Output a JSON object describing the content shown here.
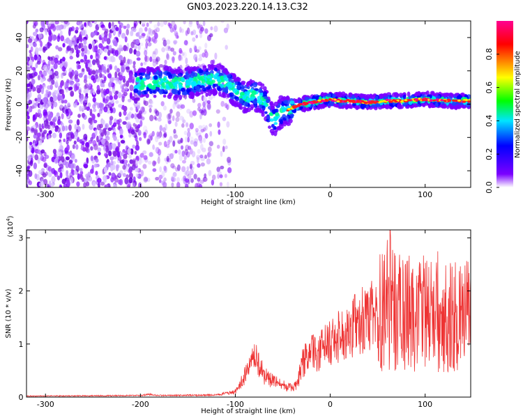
{
  "title": "GN03.2023.220.14.13.C32",
  "chart_data": [
    {
      "type": "heatmap",
      "xlabel": "Height of straight line (km)",
      "ylabel": "Frequency (Hz)",
      "xlim": [
        -320,
        148
      ],
      "ylim": [
        -50,
        50
      ],
      "x_ticks": [
        -300,
        -200,
        -100,
        0,
        100
      ],
      "y_ticks": [
        -40,
        -20,
        0,
        20,
        40
      ],
      "grid": false,
      "colorbar": {
        "label": "Normalized spectral amplitude",
        "range": [
          0,
          1
        ],
        "ticks": [
          0.0,
          0.2,
          0.4,
          0.6,
          0.8
        ],
        "colormap": [
          "#ffffff",
          "#7b00ff",
          "#0000ff",
          "#00e5ff",
          "#00ff00",
          "#ffff00",
          "#ff0000",
          "#ff0090"
        ]
      },
      "ridge": {
        "x": [
          -200,
          -180,
          -160,
          -140,
          -120,
          -110,
          -100,
          -90,
          -80,
          -70,
          -60,
          -50,
          -45,
          -40,
          -30,
          -20,
          -10,
          0,
          10,
          20,
          40,
          60,
          80,
          100,
          120,
          140,
          148
        ],
        "y": [
          12,
          13,
          12,
          14,
          15,
          13,
          8,
          4,
          6,
          2,
          -10,
          -4,
          -4,
          -2,
          0,
          1,
          2,
          3,
          2,
          2,
          1,
          2,
          2,
          3,
          2,
          2,
          2
        ]
      },
      "noise_region": {
        "x": [
          -320,
          -110
        ],
        "y": [
          -50,
          50
        ]
      }
    },
    {
      "type": "line",
      "xlabel": "Height of straight line (km)",
      "ylabel": "SNR (10 * v/v)",
      "yscale_label": "(x10",
      "yscale_exp": "4",
      "yscale_close": ")",
      "xlim": [
        -320,
        148
      ],
      "ylim": [
        0,
        3.15
      ],
      "x_ticks": [
        -300,
        -200,
        -100,
        0,
        100
      ],
      "y_ticks": [
        0,
        1,
        2,
        3
      ],
      "color": "#ee3333",
      "envelope": {
        "x": [
          -320,
          -200,
          -190,
          -180,
          -120,
          -100,
          -95,
          -90,
          -85,
          -80,
          -75,
          -70,
          -60,
          -50,
          -40,
          -35,
          -30,
          -25,
          -20,
          -10,
          0,
          10,
          20,
          30,
          40,
          50,
          55,
          60,
          65,
          70,
          80,
          90,
          100,
          110,
          120,
          130,
          140,
          148
        ],
        "y": [
          0.02,
          0.03,
          0.05,
          0.03,
          0.04,
          0.1,
          0.25,
          0.4,
          0.55,
          0.7,
          0.65,
          0.4,
          0.3,
          0.22,
          0.18,
          0.22,
          0.6,
          0.75,
          0.8,
          0.9,
          1.0,
          1.15,
          1.3,
          1.4,
          1.5,
          1.55,
          1.6,
          1.75,
          1.65,
          1.55,
          1.5,
          1.45,
          1.5,
          1.55,
          1.5,
          1.45,
          1.45,
          1.45
        ]
      },
      "peak": {
        "x": 63,
        "y": 3.15
      }
    }
  ]
}
